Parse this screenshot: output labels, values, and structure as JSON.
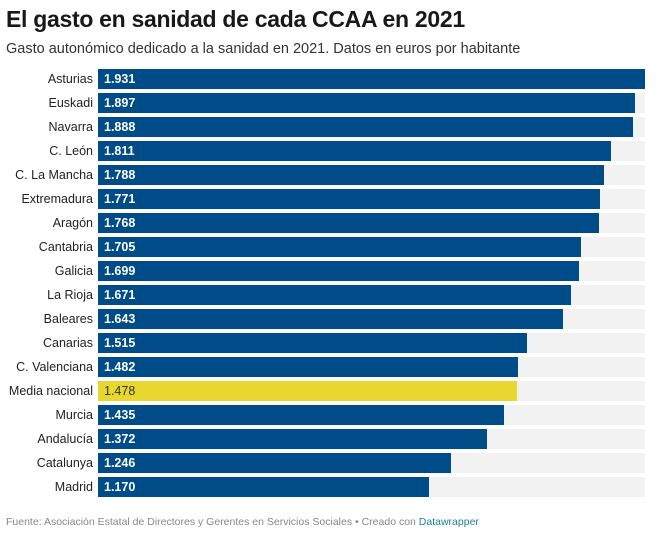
{
  "header": {
    "title": "El gasto en sanidad de cada CCAA en 2021",
    "subtitle": "Gasto autonómico dedicado a la sanidad en 2021. Datos en euros por habitante"
  },
  "footer": {
    "source": "Fuente: Asociación Estatal de Directores y Gerentes en Servicios Sociales • Creado con ",
    "credit_link": "Datawrapper"
  },
  "colors": {
    "bar": "#004c88",
    "highlight": "#e8d72e",
    "track": "#f2f2f2",
    "link": "#1d81a2"
  },
  "chart_data": {
    "type": "bar",
    "orientation": "horizontal",
    "title": "El gasto en sanidad de cada CCAA en 2021",
    "subtitle": "Gasto autonómico dedicado a la sanidad en 2021. Datos en euros por habitante",
    "xlabel": "",
    "ylabel": "",
    "xlim": [
      0,
      1931
    ],
    "grid": false,
    "legend": "none",
    "categories": [
      "Asturias",
      "Euskadi",
      "Navarra",
      "C. León",
      "C. La Mancha",
      "Extremadura",
      "Aragón",
      "Cantabria",
      "Galicia",
      "La Rioja",
      "Baleares",
      "Canarias",
      "C. Valenciana",
      "Media nacional",
      "Murcia",
      "Andalucía",
      "Catalunya",
      "Madrid"
    ],
    "values": [
      1931,
      1897,
      1888,
      1811,
      1788,
      1771,
      1768,
      1705,
      1699,
      1671,
      1643,
      1515,
      1482,
      1478,
      1435,
      1372,
      1246,
      1170
    ],
    "value_labels": [
      "1.931",
      "1.897",
      "1.888",
      "1.811",
      "1.788",
      "1.771",
      "1.768",
      "1.705",
      "1.699",
      "1.671",
      "1.643",
      "1.515",
      "1.482",
      "1.478",
      "1.435",
      "1.372",
      "1.246",
      "1.170"
    ],
    "highlighted": [
      "Media nacional"
    ]
  }
}
